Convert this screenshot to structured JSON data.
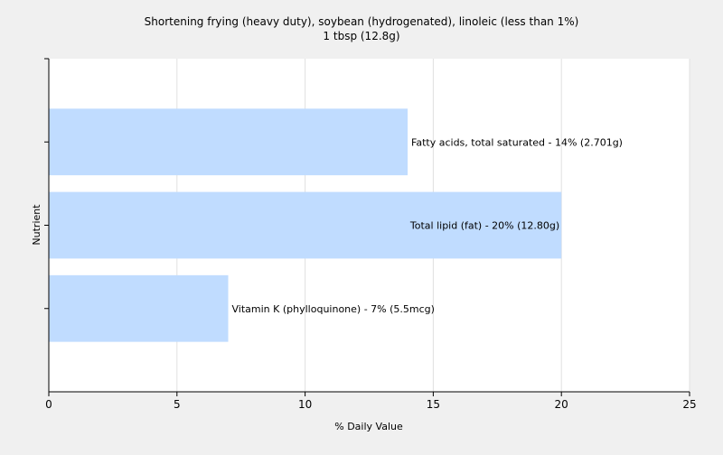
{
  "chart_data": {
    "type": "bar",
    "orientation": "horizontal",
    "title": "Shortening frying (heavy duty), soybean (hydrogenated), linoleic (less than 1%)",
    "subtitle": "1 tbsp (12.8g)",
    "xlabel": "% Daily Value",
    "ylabel": "Nutrient",
    "xlim": [
      0,
      25
    ],
    "xticks": [
      "0",
      "5",
      "10",
      "15",
      "20",
      "25"
    ],
    "grid": true,
    "categories": [
      "Fatty acids, total saturated",
      "Total lipid (fat)",
      "Vitamin K (phylloquinone)"
    ],
    "values": [
      14,
      20,
      7
    ],
    "labels": [
      "Fatty acids, total saturated - 14% (2.701g)",
      "Total lipid (fat) - 20% (12.80g)",
      "Vitamin K (phylloquinone) - 7% (5.5mcg)"
    ],
    "colors": {
      "bar": "#c0dcff",
      "background": "#f0f0f0",
      "plot_background": "#ffffff",
      "grid": "#e0e0e0"
    }
  }
}
